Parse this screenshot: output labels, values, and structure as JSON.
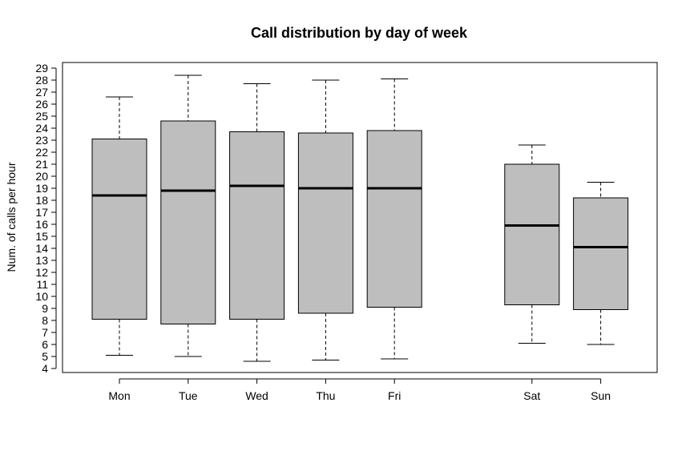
{
  "chart_data": {
    "type": "boxplot",
    "title": "Call distribution by day of week",
    "xlabel": "",
    "ylabel": "Num. of calls per hour",
    "ylim": [
      4,
      29
    ],
    "yticks": [
      4,
      5,
      6,
      7,
      8,
      9,
      10,
      11,
      12,
      13,
      14,
      15,
      16,
      17,
      18,
      19,
      20,
      21,
      22,
      23,
      24,
      25,
      26,
      27,
      28,
      29
    ],
    "grid": false,
    "box_color": "#bebebe",
    "categories": [
      "Mon",
      "Tue",
      "Wed",
      "Thu",
      "Fri",
      "Sat",
      "Sun"
    ],
    "positions": [
      1,
      2,
      3,
      4,
      5,
      7,
      8
    ],
    "boxes": [
      {
        "label": "Mon",
        "min": 5.1,
        "q1": 8.1,
        "median": 18.4,
        "q3": 23.1,
        "max": 26.6
      },
      {
        "label": "Tue",
        "min": 5.0,
        "q1": 7.7,
        "median": 18.8,
        "q3": 24.6,
        "max": 28.4
      },
      {
        "label": "Wed",
        "min": 4.6,
        "q1": 8.1,
        "median": 19.2,
        "q3": 23.7,
        "max": 27.7
      },
      {
        "label": "Thu",
        "min": 4.7,
        "q1": 8.6,
        "median": 19.0,
        "q3": 23.6,
        "max": 28.0
      },
      {
        "label": "Fri",
        "min": 4.8,
        "q1": 9.1,
        "median": 19.0,
        "q3": 23.8,
        "max": 28.1
      },
      {
        "label": "Sat",
        "min": 6.1,
        "q1": 9.3,
        "median": 15.9,
        "q3": 21.0,
        "max": 22.6
      },
      {
        "label": "Sun",
        "min": 6.0,
        "q1": 8.9,
        "median": 14.1,
        "q3": 18.2,
        "max": 19.5
      }
    ]
  }
}
